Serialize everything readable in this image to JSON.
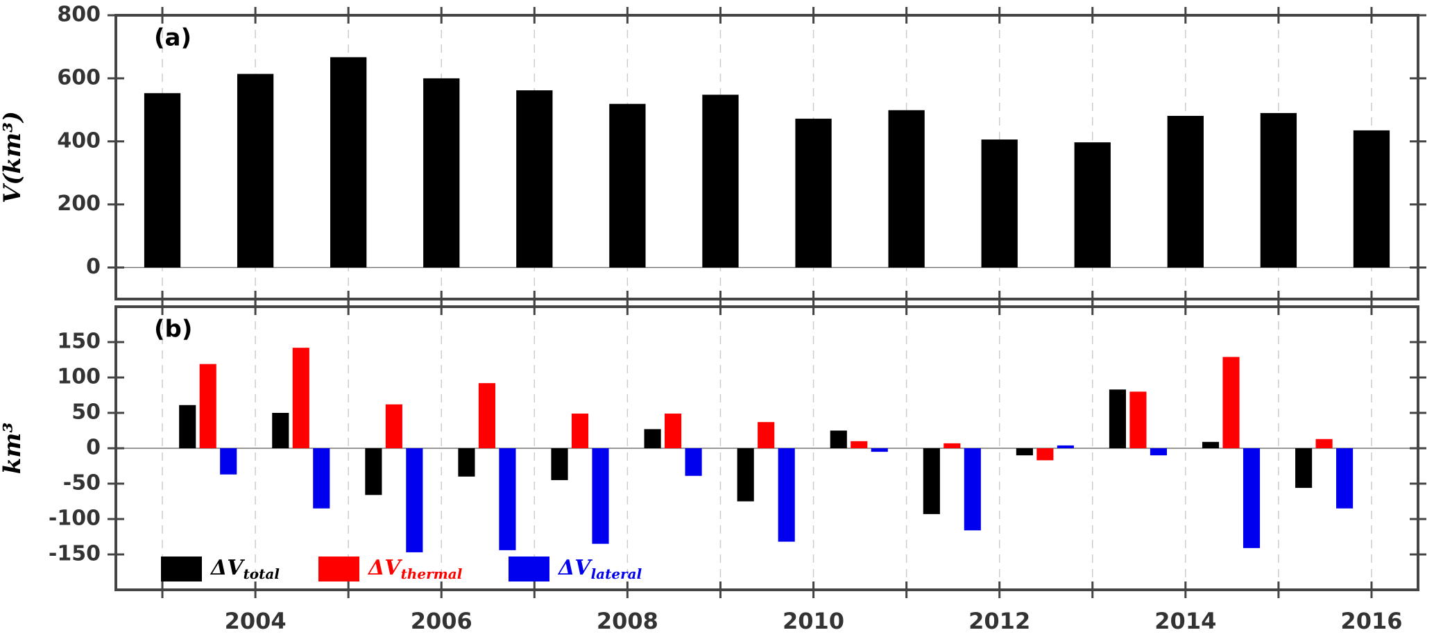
{
  "chart_data": [
    {
      "type": "bar",
      "panel_label": "(a)",
      "ylabel": "V(km³)",
      "x": [
        2003,
        2004,
        2005,
        2006,
        2007,
        2008,
        2009,
        2010,
        2011,
        2012,
        2013,
        2014,
        2015,
        2016
      ],
      "values": [
        553,
        614,
        667,
        600,
        562,
        519,
        548,
        472,
        499,
        406,
        397,
        481,
        490,
        435
      ],
      "color": "#000000",
      "xlim": [
        2002.5,
        2016.5
      ],
      "xticks": [
        2004,
        2006,
        2008,
        2010,
        2012,
        2014,
        2016
      ],
      "xticks_minor": [
        2003,
        2005,
        2007,
        2009,
        2011,
        2013,
        2015
      ],
      "ylim": [
        -100,
        800
      ],
      "yticks": [
        0,
        200,
        400,
        600,
        800
      ],
      "grid": true
    },
    {
      "type": "grouped_bar",
      "panel_label": "(b)",
      "ylabel": "km³",
      "x": [
        2003,
        2004,
        2005,
        2006,
        2007,
        2008,
        2009,
        2010,
        2011,
        2012,
        2013,
        2014,
        2015
      ],
      "series": [
        {
          "name": "ΔV",
          "name_sub": "total",
          "color": "#000000",
          "values": [
            61,
            50,
            -66,
            -40,
            -45,
            27,
            -75,
            25,
            -93,
            -10,
            83,
            9,
            -56
          ]
        },
        {
          "name": "ΔV",
          "name_sub": "thermal",
          "color": "#ff0000",
          "values": [
            119,
            142,
            62,
            92,
            49,
            49,
            37,
            10,
            7,
            -17,
            80,
            129,
            13
          ]
        },
        {
          "name": "ΔV",
          "name_sub": "lateral",
          "color": "#0000ee",
          "values": [
            -37,
            -85,
            -147,
            -144,
            -135,
            -39,
            -132,
            -5,
            -116,
            4,
            -10,
            -141,
            -85
          ]
        }
      ],
      "xlim": [
        2002.5,
        2016.5
      ],
      "xticks": [
        2004,
        2006,
        2008,
        2010,
        2012,
        2014,
        2016
      ],
      "xticks_minor": [
        2003,
        2005,
        2007,
        2009,
        2011,
        2013,
        2015
      ],
      "ylim": [
        -200,
        200
      ],
      "yticks": [
        -150,
        -100,
        -50,
        0,
        50,
        100,
        150
      ],
      "grid": true,
      "legend": "lower left"
    }
  ]
}
